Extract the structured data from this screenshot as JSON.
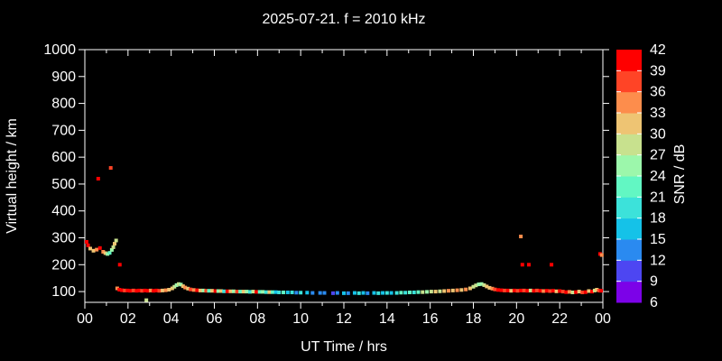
{
  "title": "2025-07-21. f = 2010 kHz",
  "axes": {
    "x_label": "UT Time / hrs",
    "y_label": "Virtual height / km",
    "x_tick_labels": [
      "00",
      "02",
      "04",
      "06",
      "08",
      "10",
      "12",
      "14",
      "16",
      "18",
      "20",
      "22",
      "00"
    ],
    "x_major_hours": [
      0,
      2,
      4,
      6,
      8,
      10,
      12,
      14,
      16,
      18,
      20,
      22,
      24
    ],
    "x_minor_hours": [
      1,
      3,
      5,
      7,
      9,
      11,
      13,
      15,
      17,
      19,
      21,
      23
    ],
    "y_tick_labels": [
      "100",
      "200",
      "300",
      "400",
      "500",
      "600",
      "700",
      "800",
      "900",
      "1000"
    ],
    "y_tick_values": [
      100,
      200,
      300,
      400,
      500,
      600,
      700,
      800,
      900,
      1000
    ]
  },
  "colorbar": {
    "label": "SNR / dB",
    "tick_values": [
      6,
      9,
      12,
      15,
      18,
      21,
      24,
      27,
      30,
      33,
      36,
      39,
      42
    ],
    "range": [
      6,
      42
    ],
    "colors_bottom_to_top": [
      "#7c02e8",
      "#4d46f2",
      "#2a8af0",
      "#15c2e8",
      "#3ce2da",
      "#62f7c3",
      "#9cf7ab",
      "#c8e18e",
      "#eec473",
      "#fd8d4c",
      "#ff4426",
      "#ff0000"
    ]
  },
  "style_colors": {
    "background": "#000000",
    "frame": "#ffffff",
    "text": "#ffffff"
  },
  "chart_data": {
    "type": "scatter",
    "title": "2025-07-21. f = 2010 kHz",
    "xlabel": "UT Time / hrs",
    "ylabel": "Virtual height / km",
    "color_label": "SNR / dB",
    "xlim": [
      0,
      24
    ],
    "ylim": [
      60,
      1000
    ],
    "color_lim": [
      6,
      42
    ],
    "grid": false,
    "marker_px": 4,
    "points_format": [
      "ut_hours",
      "virtual_height_km",
      "snr_db"
    ],
    "points": [
      [
        0.08,
        285,
        40
      ],
      [
        0.15,
        272,
        40
      ],
      [
        0.25,
        260,
        31
      ],
      [
        0.4,
        252,
        31
      ],
      [
        0.55,
        256,
        34
      ],
      [
        0.62,
        520,
        40
      ],
      [
        0.7,
        262,
        40
      ],
      [
        0.85,
        248,
        34
      ],
      [
        0.95,
        243,
        31
      ],
      [
        1.05,
        240,
        25
      ],
      [
        1.15,
        244,
        22
      ],
      [
        1.2,
        560,
        37
      ],
      [
        1.25,
        255,
        25
      ],
      [
        1.32,
        265,
        28
      ],
      [
        1.38,
        278,
        31
      ],
      [
        1.45,
        290,
        28
      ],
      [
        1.62,
        200,
        40
      ],
      [
        2.85,
        68,
        28
      ],
      [
        1.5,
        112,
        34
      ],
      [
        1.6,
        107,
        40
      ],
      [
        1.72,
        105,
        40
      ],
      [
        1.85,
        104,
        37
      ],
      [
        1.98,
        104,
        40
      ],
      [
        2.1,
        103,
        40
      ],
      [
        2.25,
        104,
        37
      ],
      [
        2.4,
        103,
        40
      ],
      [
        2.52,
        104,
        40
      ],
      [
        2.65,
        103,
        37
      ],
      [
        2.78,
        104,
        40
      ],
      [
        2.92,
        103,
        40
      ],
      [
        3.05,
        104,
        34
      ],
      [
        3.18,
        103,
        40
      ],
      [
        3.32,
        104,
        40
      ],
      [
        3.45,
        103,
        37
      ],
      [
        3.6,
        104,
        31
      ],
      [
        3.75,
        105,
        34
      ],
      [
        3.9,
        107,
        31
      ],
      [
        4.05,
        112,
        31
      ],
      [
        4.15,
        118,
        28
      ],
      [
        4.25,
        124,
        25
      ],
      [
        4.35,
        128,
        28
      ],
      [
        4.45,
        126,
        25
      ],
      [
        4.55,
        120,
        31
      ],
      [
        4.65,
        115,
        34
      ],
      [
        4.78,
        111,
        31
      ],
      [
        4.9,
        108,
        37
      ],
      [
        5.05,
        106,
        34
      ],
      [
        5.2,
        105,
        40
      ],
      [
        5.35,
        104,
        31
      ],
      [
        5.5,
        104,
        25
      ],
      [
        5.62,
        103,
        37
      ],
      [
        5.75,
        103,
        22
      ],
      [
        5.9,
        103,
        31
      ],
      [
        6.05,
        102,
        40
      ],
      [
        6.18,
        102,
        25
      ],
      [
        6.32,
        102,
        31
      ],
      [
        6.45,
        101,
        19
      ],
      [
        6.6,
        101,
        40
      ],
      [
        6.75,
        101,
        31
      ],
      [
        6.9,
        101,
        25
      ],
      [
        7.05,
        100,
        37
      ],
      [
        7.2,
        100,
        22
      ],
      [
        7.35,
        100,
        31
      ],
      [
        7.5,
        100,
        25
      ],
      [
        7.65,
        99,
        19
      ],
      [
        7.8,
        100,
        28
      ],
      [
        7.95,
        99,
        40
      ],
      [
        8.1,
        99,
        22
      ],
      [
        8.25,
        99,
        25
      ],
      [
        8.4,
        98,
        19
      ],
      [
        8.55,
        98,
        31
      ],
      [
        8.7,
        98,
        22
      ],
      [
        8.85,
        98,
        16
      ],
      [
        9.0,
        97,
        19
      ],
      [
        9.2,
        97,
        22
      ],
      [
        9.4,
        97,
        16
      ],
      [
        9.6,
        97,
        19
      ],
      [
        9.8,
        96,
        13
      ],
      [
        10.0,
        96,
        19
      ],
      [
        10.3,
        96,
        16
      ],
      [
        10.55,
        95,
        13
      ],
      [
        10.9,
        95,
        13
      ],
      [
        11.1,
        95,
        13
      ],
      [
        11.5,
        94,
        10
      ],
      [
        11.7,
        95,
        13
      ],
      [
        12.0,
        94,
        16
      ],
      [
        12.2,
        94,
        13
      ],
      [
        12.5,
        95,
        16
      ],
      [
        12.7,
        94,
        19
      ],
      [
        12.9,
        95,
        16
      ],
      [
        13.1,
        94,
        13
      ],
      [
        13.4,
        95,
        16
      ],
      [
        13.6,
        94,
        19
      ],
      [
        13.8,
        95,
        16
      ],
      [
        14.0,
        95,
        19
      ],
      [
        14.2,
        95,
        16
      ],
      [
        14.45,
        95,
        19
      ],
      [
        14.65,
        96,
        22
      ],
      [
        14.85,
        96,
        19
      ],
      [
        15.05,
        97,
        22
      ],
      [
        15.25,
        97,
        19
      ],
      [
        15.45,
        98,
        22
      ],
      [
        15.65,
        98,
        28
      ],
      [
        15.85,
        99,
        25
      ],
      [
        16.05,
        100,
        28
      ],
      [
        16.25,
        100,
        31
      ],
      [
        16.45,
        101,
        28
      ],
      [
        16.65,
        102,
        31
      ],
      [
        16.85,
        103,
        34
      ],
      [
        17.05,
        104,
        31
      ],
      [
        17.25,
        105,
        34
      ],
      [
        17.45,
        106,
        31
      ],
      [
        17.65,
        108,
        34
      ],
      [
        17.85,
        112,
        31
      ],
      [
        18.0,
        118,
        28
      ],
      [
        18.12,
        123,
        28
      ],
      [
        18.25,
        127,
        25
      ],
      [
        18.38,
        128,
        25
      ],
      [
        18.5,
        124,
        28
      ],
      [
        18.62,
        119,
        31
      ],
      [
        18.75,
        114,
        31
      ],
      [
        18.88,
        111,
        34
      ],
      [
        19.0,
        108,
        37
      ],
      [
        19.15,
        106,
        40
      ],
      [
        19.3,
        105,
        40
      ],
      [
        19.45,
        104,
        37
      ],
      [
        19.6,
        104,
        40
      ],
      [
        19.75,
        103,
        31
      ],
      [
        19.9,
        104,
        40
      ],
      [
        20.05,
        103,
        37
      ],
      [
        20.2,
        104,
        40
      ],
      [
        20.35,
        104,
        37
      ],
      [
        20.5,
        103,
        40
      ],
      [
        20.65,
        104,
        28
      ],
      [
        20.8,
        103,
        40
      ],
      [
        20.95,
        104,
        37
      ],
      [
        21.1,
        103,
        40
      ],
      [
        21.25,
        102,
        34
      ],
      [
        21.4,
        103,
        40
      ],
      [
        21.55,
        102,
        37
      ],
      [
        21.7,
        103,
        40
      ],
      [
        21.85,
        101,
        31
      ],
      [
        22.0,
        102,
        40
      ],
      [
        22.15,
        100,
        37
      ],
      [
        22.3,
        98,
        40
      ],
      [
        22.45,
        99,
        34
      ],
      [
        22.6,
        97,
        28
      ],
      [
        22.75,
        98,
        40
      ],
      [
        22.9,
        100,
        31
      ],
      [
        23.05,
        97,
        37
      ],
      [
        23.2,
        98,
        40
      ],
      [
        23.35,
        102,
        31
      ],
      [
        23.5,
        100,
        40
      ],
      [
        23.62,
        104,
        28
      ],
      [
        23.72,
        107,
        31
      ],
      [
        23.82,
        104,
        37
      ],
      [
        23.92,
        103,
        40
      ],
      [
        20.2,
        305,
        34
      ],
      [
        20.27,
        200,
        40
      ],
      [
        20.57,
        200,
        40
      ],
      [
        21.62,
        200,
        40
      ],
      [
        23.87,
        240,
        40
      ],
      [
        23.95,
        236,
        34
      ]
    ]
  }
}
